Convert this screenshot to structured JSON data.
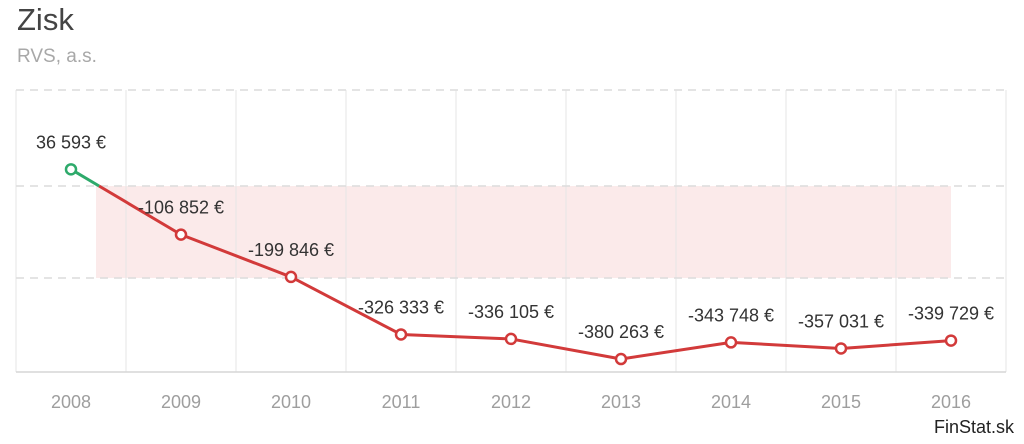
{
  "header": {
    "title": "Zisk",
    "subtitle": "RVS, a.s."
  },
  "footer": {
    "brand": "FinStat.sk"
  },
  "chart_data": {
    "type": "line",
    "title": "Zisk",
    "subtitle": "RVS, a.s.",
    "xlabel": "",
    "ylabel": "",
    "categories": [
      "2008",
      "2009",
      "2010",
      "2011",
      "2012",
      "2013",
      "2014",
      "2015",
      "2016"
    ],
    "series": [
      {
        "values": [
          36593,
          -106852,
          -199846,
          -326333,
          -336105,
          -380263,
          -343748,
          -357031,
          -339729
        ],
        "labels": [
          "36 593 €",
          "-106 852 €",
          "-199 846 €",
          "-326 333 €",
          "-336 105 €",
          "-380 263 €",
          "-343 748 €",
          "-357 031 €",
          "-339 729 €"
        ],
        "color_positive": "#2eaa6b",
        "color_negative": "#d23a3a"
      }
    ],
    "ylim": [
      -400000,
      200000
    ],
    "grid": true,
    "negative_area_color": "#fbeaea",
    "legend": "none"
  }
}
